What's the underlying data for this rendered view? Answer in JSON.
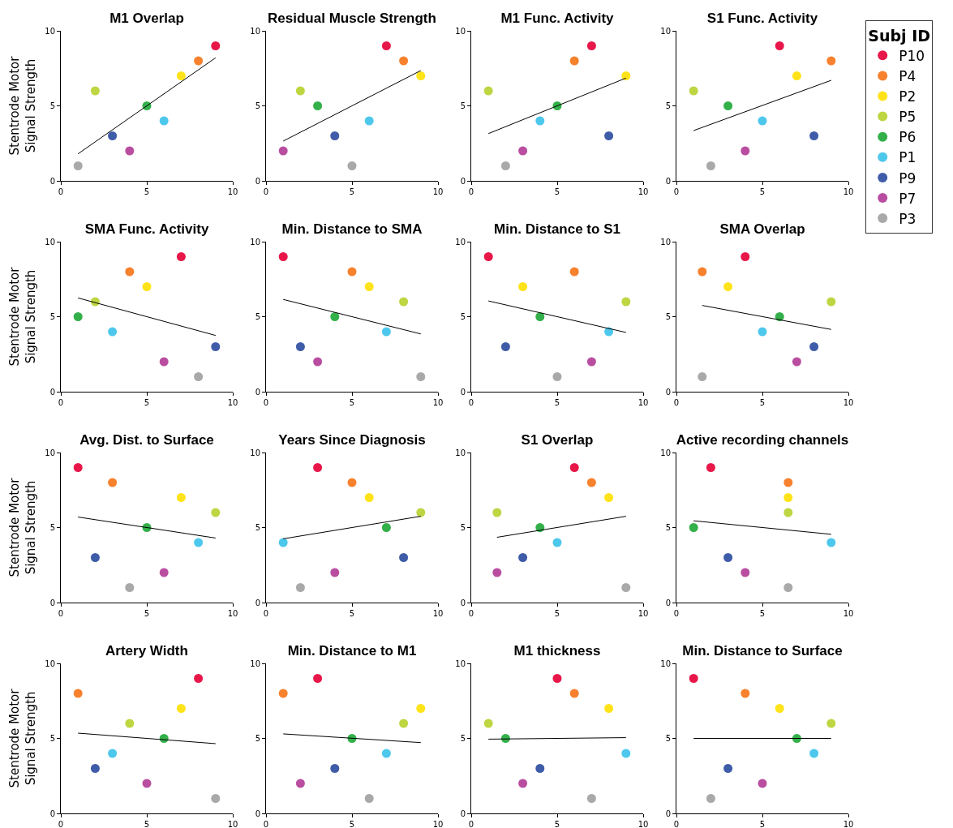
{
  "chart_data": [
    {
      "type": "scatter",
      "title": "M1 Overlap",
      "ylabel": "Stentrode Motor Signal Strength",
      "xlim": [
        0,
        10
      ],
      "xticks": [
        0,
        5,
        10
      ],
      "ylim": [
        0,
        10
      ],
      "yticks": [
        0,
        5,
        10
      ],
      "grid": false,
      "legend": false,
      "marker": "circle",
      "series": [
        {
          "x": [
            9,
            8,
            7,
            2,
            5,
            6,
            3,
            4,
            1
          ],
          "values": [
            9,
            8,
            7,
            6,
            5,
            4,
            3,
            2,
            1
          ],
          "colors": [
            "#e8174a",
            "#f7812d",
            "#ffe31a",
            "#bdd642",
            "#33b04a",
            "#4dc8ec",
            "#3f5ca8",
            "#b94ea1",
            "#a9a9a9"
          ]
        },
        {
          "type": "line",
          "x": [
            1,
            9
          ],
          "values": [
            1.8,
            8.2
          ],
          "color": "#000000",
          "marker": "none"
        }
      ]
    },
    {
      "type": "scatter",
      "title": "Residual Muscle Strength",
      "xlim": [
        0,
        10
      ],
      "xticks": [
        0,
        5,
        10
      ],
      "ylim": [
        0,
        10
      ],
      "yticks": [
        0,
        5,
        10
      ],
      "grid": false,
      "legend": false,
      "marker": "circle",
      "series": [
        {
          "x": [
            7,
            8,
            9,
            2,
            3,
            6,
            4,
            1,
            5
          ],
          "values": [
            9,
            8,
            7,
            6,
            5,
            4,
            3,
            2,
            1
          ],
          "colors": [
            "#e8174a",
            "#f7812d",
            "#ffe31a",
            "#bdd642",
            "#33b04a",
            "#4dc8ec",
            "#3f5ca8",
            "#b94ea1",
            "#a9a9a9"
          ]
        },
        {
          "type": "line",
          "x": [
            1,
            9
          ],
          "values": [
            2.65,
            7.35
          ],
          "color": "#000000",
          "marker": "none"
        }
      ]
    },
    {
      "type": "scatter",
      "title": "M1 Func. Activity",
      "xlim": [
        0,
        10
      ],
      "xticks": [
        0,
        5,
        10
      ],
      "ylim": [
        0,
        10
      ],
      "yticks": [
        0,
        5,
        10
      ],
      "grid": false,
      "legend": false,
      "marker": "circle",
      "series": [
        {
          "x": [
            7,
            6,
            9,
            1,
            5,
            4,
            8,
            3,
            2
          ],
          "values": [
            9,
            8,
            7,
            6,
            5,
            4,
            3,
            2,
            1
          ],
          "colors": [
            "#e8174a",
            "#f7812d",
            "#ffe31a",
            "#bdd642",
            "#33b04a",
            "#4dc8ec",
            "#3f5ca8",
            "#b94ea1",
            "#a9a9a9"
          ]
        },
        {
          "type": "line",
          "x": [
            1,
            9
          ],
          "values": [
            3.15,
            6.85
          ],
          "color": "#000000",
          "marker": "none"
        }
      ]
    },
    {
      "type": "scatter",
      "title": "S1 Func. Activity",
      "legend_title": "Subj ID",
      "xlim": [
        0,
        10
      ],
      "xticks": [
        0,
        5,
        10
      ],
      "ylim": [
        0,
        10
      ],
      "yticks": [
        0,
        5,
        10
      ],
      "grid": false,
      "legend": "right",
      "marker": "circle",
      "series": [
        {
          "name": "P10",
          "color": "#e8174a",
          "x": [
            6
          ],
          "values": [
            9
          ]
        },
        {
          "name": "P4",
          "color": "#f7812d",
          "x": [
            9
          ],
          "values": [
            8
          ]
        },
        {
          "name": "P2",
          "color": "#ffe31a",
          "x": [
            7
          ],
          "values": [
            7
          ]
        },
        {
          "name": "P5",
          "color": "#bdd642",
          "x": [
            1
          ],
          "values": [
            6
          ]
        },
        {
          "name": "P6",
          "color": "#33b04a",
          "x": [
            3
          ],
          "values": [
            5
          ]
        },
        {
          "name": "P1",
          "color": "#4dc8ec",
          "x": [
            5
          ],
          "values": [
            4
          ]
        },
        {
          "name": "P9",
          "color": "#3f5ca8",
          "x": [
            8
          ],
          "values": [
            3
          ]
        },
        {
          "name": "P7",
          "color": "#b94ea1",
          "x": [
            4
          ],
          "values": [
            2
          ]
        },
        {
          "name": "P3",
          "color": "#a9a9a9",
          "x": [
            2
          ],
          "values": [
            1
          ]
        },
        {
          "type": "line",
          "x": [
            1,
            9
          ],
          "values": [
            3.35,
            6.7
          ],
          "color": "#000000",
          "marker": "none"
        }
      ]
    },
    {
      "type": "scatter",
      "title": "SMA Func. Activity",
      "ylabel": "Stentrode Motor Signal Strength",
      "xlim": [
        0,
        10
      ],
      "xticks": [
        0,
        5,
        10
      ],
      "ylim": [
        0,
        10
      ],
      "yticks": [
        0,
        5,
        10
      ],
      "grid": false,
      "legend": false,
      "marker": "circle",
      "series": [
        {
          "x": [
            7,
            4,
            5,
            2,
            1,
            3,
            9,
            6,
            8
          ],
          "values": [
            9,
            8,
            7,
            6,
            5,
            4,
            3,
            2,
            1
          ],
          "colors": [
            "#e8174a",
            "#f7812d",
            "#ffe31a",
            "#bdd642",
            "#33b04a",
            "#4dc8ec",
            "#3f5ca8",
            "#b94ea1",
            "#a9a9a9"
          ]
        },
        {
          "type": "line",
          "x": [
            1,
            9
          ],
          "values": [
            6.25,
            3.75
          ],
          "color": "#000000",
          "marker": "none"
        }
      ]
    },
    {
      "type": "scatter",
      "title": "Min. Distance to SMA",
      "xlim": [
        0,
        10
      ],
      "xticks": [
        0,
        5,
        10
      ],
      "ylim": [
        0,
        10
      ],
      "yticks": [
        0,
        5,
        10
      ],
      "grid": false,
      "legend": false,
      "marker": "circle",
      "series": [
        {
          "x": [
            1,
            5,
            6,
            8,
            4,
            7,
            2,
            3,
            9
          ],
          "values": [
            9,
            8,
            7,
            6,
            5,
            4,
            3,
            2,
            1
          ],
          "colors": [
            "#e8174a",
            "#f7812d",
            "#ffe31a",
            "#bdd642",
            "#33b04a",
            "#4dc8ec",
            "#3f5ca8",
            "#b94ea1",
            "#a9a9a9"
          ]
        },
        {
          "type": "line",
          "x": [
            1,
            9
          ],
          "values": [
            6.15,
            3.85
          ],
          "color": "#000000",
          "marker": "none"
        }
      ]
    },
    {
      "type": "scatter",
      "title": "Min. Distance to S1",
      "xlim": [
        0,
        10
      ],
      "xticks": [
        0,
        5,
        10
      ],
      "ylim": [
        0,
        10
      ],
      "yticks": [
        0,
        5,
        10
      ],
      "grid": false,
      "legend": false,
      "marker": "circle",
      "series": [
        {
          "x": [
            1,
            6,
            3,
            9,
            4,
            8,
            2,
            7,
            5
          ],
          "values": [
            9,
            8,
            7,
            6,
            5,
            4,
            3,
            2,
            1
          ],
          "colors": [
            "#e8174a",
            "#f7812d",
            "#ffe31a",
            "#bdd642",
            "#33b04a",
            "#4dc8ec",
            "#3f5ca8",
            "#b94ea1",
            "#a9a9a9"
          ]
        },
        {
          "type": "line",
          "x": [
            1,
            9
          ],
          "values": [
            6.05,
            3.95
          ],
          "color": "#000000",
          "marker": "none"
        }
      ]
    },
    {
      "type": "scatter",
      "title": "SMA Overlap",
      "xlim": [
        0,
        10
      ],
      "xticks": [
        0,
        5,
        10
      ],
      "ylim": [
        0,
        10
      ],
      "yticks": [
        0,
        5,
        10
      ],
      "grid": false,
      "legend": false,
      "marker": "circle",
      "series": [
        {
          "x": [
            4,
            1.5,
            3,
            9,
            6,
            5,
            8,
            7,
            1.5
          ],
          "values": [
            9,
            8,
            7,
            6,
            5,
            4,
            3,
            2,
            1
          ],
          "colors": [
            "#e8174a",
            "#f7812d",
            "#ffe31a",
            "#bdd642",
            "#33b04a",
            "#4dc8ec",
            "#3f5ca8",
            "#b94ea1",
            "#a9a9a9"
          ]
        },
        {
          "type": "line",
          "x": [
            1.5,
            9
          ],
          "values": [
            5.75,
            4.15
          ],
          "color": "#000000",
          "marker": "none"
        }
      ]
    },
    {
      "type": "scatter",
      "title": "Avg. Dist. to Surface",
      "ylabel": "Stentrode Motor Signal Strength",
      "xlim": [
        0,
        10
      ],
      "xticks": [
        0,
        5,
        10
      ],
      "ylim": [
        0,
        10
      ],
      "yticks": [
        0,
        5,
        10
      ],
      "grid": false,
      "legend": false,
      "marker": "circle",
      "series": [
        {
          "x": [
            1,
            3,
            7,
            9,
            5,
            8,
            2,
            6,
            4
          ],
          "values": [
            9,
            8,
            7,
            6,
            5,
            4,
            3,
            2,
            1
          ],
          "colors": [
            "#e8174a",
            "#f7812d",
            "#ffe31a",
            "#bdd642",
            "#33b04a",
            "#4dc8ec",
            "#3f5ca8",
            "#b94ea1",
            "#a9a9a9"
          ]
        },
        {
          "type": "line",
          "x": [
            1,
            9
          ],
          "values": [
            5.7,
            4.3
          ],
          "color": "#000000",
          "marker": "none"
        }
      ]
    },
    {
      "type": "scatter",
      "title": "Years Since Diagnosis",
      "xlim": [
        0,
        10
      ],
      "xticks": [
        0,
        5,
        10
      ],
      "ylim": [
        0,
        10
      ],
      "yticks": [
        0,
        5,
        10
      ],
      "grid": false,
      "legend": false,
      "marker": "circle",
      "series": [
        {
          "x": [
            3,
            5,
            6,
            9,
            7,
            1,
            8,
            4,
            2
          ],
          "values": [
            9,
            8,
            7,
            6,
            5,
            4,
            3,
            2,
            1
          ],
          "colors": [
            "#e8174a",
            "#f7812d",
            "#ffe31a",
            "#bdd642",
            "#33b04a",
            "#4dc8ec",
            "#3f5ca8",
            "#b94ea1",
            "#a9a9a9"
          ]
        },
        {
          "type": "line",
          "x": [
            1,
            9
          ],
          "values": [
            4.25,
            5.75
          ],
          "color": "#000000",
          "marker": "none"
        }
      ]
    },
    {
      "type": "scatter",
      "title": "S1 Overlap",
      "xlim": [
        0,
        10
      ],
      "xticks": [
        0,
        5,
        10
      ],
      "ylim": [
        0,
        10
      ],
      "yticks": [
        0,
        5,
        10
      ],
      "grid": false,
      "legend": false,
      "marker": "circle",
      "series": [
        {
          "x": [
            6,
            7,
            8,
            1.5,
            4,
            5,
            3,
            1.5,
            9
          ],
          "values": [
            9,
            8,
            7,
            6,
            5,
            4,
            3,
            2,
            1
          ],
          "colors": [
            "#e8174a",
            "#f7812d",
            "#ffe31a",
            "#bdd642",
            "#33b04a",
            "#4dc8ec",
            "#3f5ca8",
            "#b94ea1",
            "#a9a9a9"
          ]
        },
        {
          "type": "line",
          "x": [
            1.5,
            9
          ],
          "values": [
            4.35,
            5.75
          ],
          "color": "#000000",
          "marker": "none"
        }
      ]
    },
    {
      "type": "scatter",
      "title": "Active recording channels",
      "xlim": [
        0,
        10
      ],
      "xticks": [
        0,
        5,
        10
      ],
      "ylim": [
        0,
        10
      ],
      "yticks": [
        0,
        5,
        10
      ],
      "grid": false,
      "legend": false,
      "marker": "circle",
      "series": [
        {
          "x": [
            2,
            6.5,
            6.5,
            6.5,
            1,
            9,
            3,
            4,
            6.5
          ],
          "values": [
            9,
            8,
            7,
            6,
            5,
            4,
            3,
            2,
            1
          ],
          "colors": [
            "#e8174a",
            "#f7812d",
            "#ffe31a",
            "#bdd642",
            "#33b04a",
            "#4dc8ec",
            "#3f5ca8",
            "#b94ea1",
            "#a9a9a9"
          ]
        },
        {
          "type": "line",
          "x": [
            1,
            9
          ],
          "values": [
            5.45,
            4.55
          ],
          "color": "#000000",
          "marker": "none"
        }
      ]
    },
    {
      "type": "scatter",
      "title": "Artery Width",
      "ylabel": "Stentrode Motor Signal Strength",
      "xlim": [
        0,
        10
      ],
      "xticks": [
        0,
        5,
        10
      ],
      "ylim": [
        0,
        10
      ],
      "yticks": [
        0,
        5,
        10
      ],
      "grid": false,
      "legend": false,
      "marker": "circle",
      "series": [
        {
          "x": [
            8,
            1,
            7,
            4,
            6,
            3,
            2,
            5,
            9
          ],
          "values": [
            9,
            8,
            7,
            6,
            5,
            4,
            3,
            2,
            1
          ],
          "colors": [
            "#e8174a",
            "#f7812d",
            "#ffe31a",
            "#bdd642",
            "#33b04a",
            "#4dc8ec",
            "#3f5ca8",
            "#b94ea1",
            "#a9a9a9"
          ]
        },
        {
          "type": "line",
          "x": [
            1,
            9
          ],
          "values": [
            5.35,
            4.65
          ],
          "color": "#000000",
          "marker": "none"
        }
      ]
    },
    {
      "type": "scatter",
      "title": "Min. Distance to M1",
      "xlim": [
        0,
        10
      ],
      "xticks": [
        0,
        5,
        10
      ],
      "ylim": [
        0,
        10
      ],
      "yticks": [
        0,
        5,
        10
      ],
      "grid": false,
      "legend": false,
      "marker": "circle",
      "series": [
        {
          "x": [
            3,
            1,
            9,
            8,
            5,
            7,
            4,
            2,
            6
          ],
          "values": [
            9,
            8,
            7,
            6,
            5,
            4,
            3,
            2,
            1
          ],
          "colors": [
            "#e8174a",
            "#f7812d",
            "#ffe31a",
            "#bdd642",
            "#33b04a",
            "#4dc8ec",
            "#3f5ca8",
            "#b94ea1",
            "#a9a9a9"
          ]
        },
        {
          "type": "line",
          "x": [
            1,
            9
          ],
          "values": [
            5.3,
            4.72
          ],
          "color": "#000000",
          "marker": "none"
        }
      ]
    },
    {
      "type": "scatter",
      "title": "M1 thickness",
      "xlim": [
        0,
        10
      ],
      "xticks": [
        0,
        5,
        10
      ],
      "ylim": [
        0,
        10
      ],
      "yticks": [
        0,
        5,
        10
      ],
      "grid": false,
      "legend": false,
      "marker": "circle",
      "series": [
        {
          "x": [
            5,
            6,
            8,
            1,
            2,
            9,
            4,
            3,
            7
          ],
          "values": [
            9,
            8,
            7,
            6,
            5,
            4,
            3,
            2,
            1
          ],
          "colors": [
            "#e8174a",
            "#f7812d",
            "#ffe31a",
            "#bdd642",
            "#33b04a",
            "#4dc8ec",
            "#3f5ca8",
            "#b94ea1",
            "#a9a9a9"
          ]
        },
        {
          "type": "line",
          "x": [
            1,
            9
          ],
          "values": [
            4.95,
            5.05
          ],
          "color": "#000000",
          "marker": "none"
        }
      ]
    },
    {
      "type": "scatter",
      "title": "Min. Distance to Surface",
      "xlim": [
        0,
        10
      ],
      "xticks": [
        0,
        5,
        10
      ],
      "ylim": [
        0,
        10
      ],
      "yticks": [
        0,
        5,
        10
      ],
      "grid": false,
      "legend": false,
      "marker": "circle",
      "series": [
        {
          "x": [
            1,
            4,
            6,
            9,
            7,
            8,
            3,
            5,
            2
          ],
          "values": [
            9,
            8,
            7,
            6,
            5,
            4,
            3,
            2,
            1
          ],
          "colors": [
            "#e8174a",
            "#f7812d",
            "#ffe31a",
            "#bdd642",
            "#33b04a",
            "#4dc8ec",
            "#3f5ca8",
            "#b94ea1",
            "#a9a9a9"
          ]
        },
        {
          "type": "line",
          "x": [
            1,
            9
          ],
          "values": [
            5,
            5
          ],
          "color": "#000000",
          "marker": "none"
        }
      ]
    }
  ]
}
